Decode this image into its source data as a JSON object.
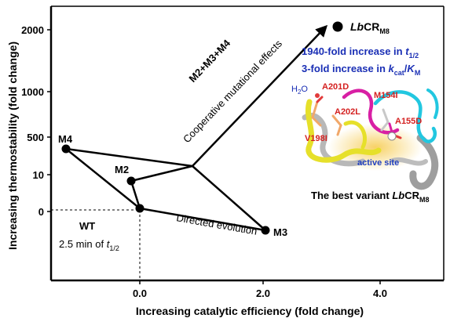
{
  "axes": {
    "x_label": "Increasing catalytic efficiency (fold change)",
    "y_label": "Increasing thermostability (fold change)",
    "x_ticks": [
      "0.0",
      "2.0",
      "4.0"
    ],
    "y_ticks": [
      "2000",
      "1000",
      "500",
      "10",
      "0"
    ]
  },
  "points": {
    "wt": "WT",
    "wt_note_prefix": "2.5 min of ",
    "wt_note_var": "t",
    "wt_note_sub": "1/2",
    "m2": "M2",
    "m3": "M3",
    "m4": "M4",
    "final_name_italic": "Lb",
    "final_name_main": "CR",
    "final_name_sub": "M8"
  },
  "arrows": {
    "combo_label": "M2+M3+M4",
    "combo_effect": "Cooperative mutational effects",
    "directed_evolution": "Directed evolution"
  },
  "results": {
    "line1_prefix": "1940-fold increase in ",
    "line1_var": "t",
    "line1_sub": "1/2",
    "line2_prefix": "3-fold increase in ",
    "line2_var1": "k",
    "line2_sub1": "cat",
    "line2_slash": "/",
    "line2_var2": "K",
    "line2_sub2": "M"
  },
  "structure": {
    "water": "H",
    "water_sub": "2",
    "water_tail": "O",
    "mut_a201d": "A201D",
    "mut_a202l": "A202L",
    "mut_v198i": "V198I",
    "mut_m154i": "M154I",
    "mut_a155d": "A155D",
    "active_site": "active site",
    "caption_prefix": "The best variant ",
    "caption_italic": "Lb",
    "caption_main": "CR",
    "caption_sub": "M8"
  },
  "colors": {
    "results_text": "#1a2fb5",
    "mutation_text": "#d42020",
    "active_site_text": "#1f3fc0",
    "water_text": "#1a2fb5",
    "helix_yellow": "#e6e02a",
    "loop_magenta": "#d81fa4",
    "loop_cyan": "#22c7e0",
    "strand_gray": "#a8a8a8"
  }
}
